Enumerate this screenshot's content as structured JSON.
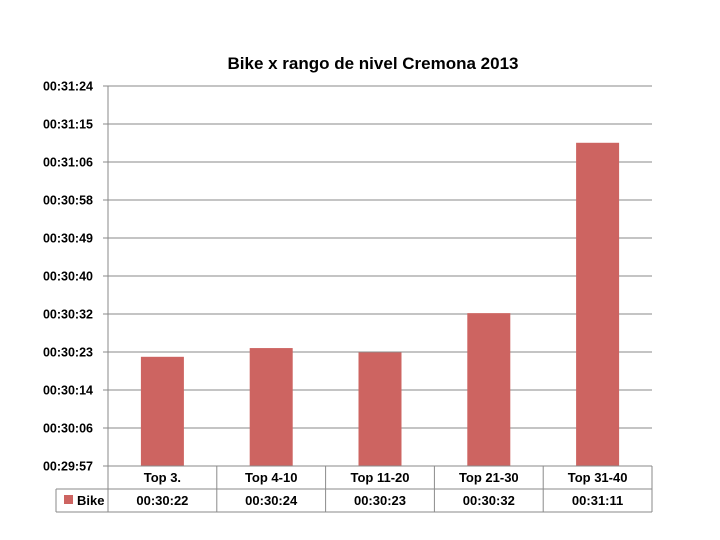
{
  "chart_data": {
    "type": "bar",
    "title": "Bike x rango de nivel Cremona 2013",
    "xlabel": "",
    "ylabel": "",
    "categories": [
      "Top 3.",
      "Top 4-10",
      "Top 11-20",
      "Top 21-30",
      "Top 31-40"
    ],
    "series": [
      {
        "name": "Bike",
        "color": "#CD6461",
        "values_seconds": [
          1822,
          1824,
          1823,
          1832,
          1871
        ],
        "labels": [
          "00:30:22",
          "00:30:24",
          "00:30:23",
          "00:30:32",
          "00:31:11"
        ]
      }
    ],
    "y_ticks": [
      "00:29:57",
      "00:30:06",
      "00:30:14",
      "00:30:23",
      "00:30:32",
      "00:30:40",
      "00:30:49",
      "00:30:58",
      "00:31:06",
      "00:31:15",
      "00:31:24"
    ],
    "ylim_seconds": [
      1797,
      1884
    ],
    "grid": true,
    "legend": "data-table"
  }
}
